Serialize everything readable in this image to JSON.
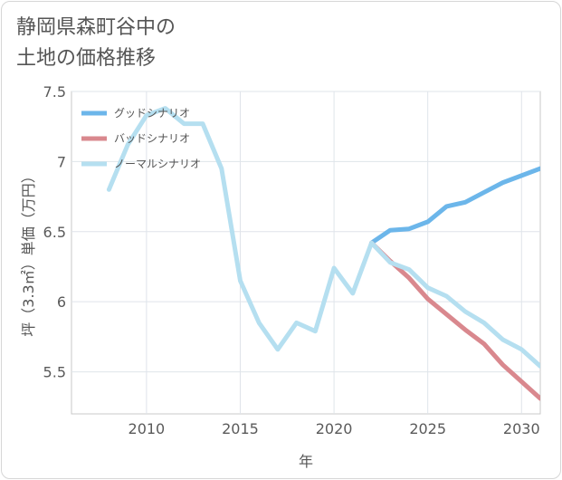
{
  "chart_data": {
    "type": "line",
    "title": [
      "静岡県森町谷中の",
      "土地の価格推移"
    ],
    "xlabel": "年",
    "ylabel": "坪（3.3㎡）単価（万円）",
    "xlim": [
      2006,
      2031
    ],
    "ylim": [
      5.2,
      7.5
    ],
    "xticks": [
      2010,
      2015,
      2020,
      2025,
      2030
    ],
    "yticks": [
      5.5,
      6,
      6.5,
      7,
      7.5
    ],
    "ytick_labels": [
      "5.5",
      "6",
      "6.5",
      "7",
      "7.5"
    ],
    "legend_position": "top-left",
    "grid": true,
    "series": [
      {
        "name": "グッドシナリオ",
        "color": "#6cb6ea",
        "x": [
          2022,
          2023,
          2024,
          2025,
          2026,
          2027,
          2028,
          2029,
          2030,
          2031
        ],
        "y": [
          6.42,
          6.51,
          6.52,
          6.57,
          6.68,
          6.71,
          6.78,
          6.85,
          6.9,
          6.95
        ]
      },
      {
        "name": "バッドシナリオ",
        "color": "#d9888e",
        "x": [
          2022,
          2023,
          2024,
          2025,
          2026,
          2027,
          2028,
          2029,
          2030,
          2031
        ],
        "y": [
          6.42,
          6.29,
          6.17,
          6.02,
          5.91,
          5.8,
          5.7,
          5.55,
          5.43,
          5.31
        ]
      },
      {
        "name": "ノーマルシナリオ",
        "color": "#b5dff0",
        "x": [
          2008,
          2009,
          2010,
          2011,
          2012,
          2013,
          2014,
          2015,
          2016,
          2017,
          2018,
          2019,
          2020,
          2021,
          2022,
          2023,
          2024,
          2025,
          2026,
          2027,
          2028,
          2029,
          2030,
          2031
        ],
        "y": [
          6.8,
          7.12,
          7.33,
          7.38,
          7.27,
          7.27,
          6.95,
          6.15,
          5.85,
          5.66,
          5.85,
          5.79,
          6.24,
          6.06,
          6.42,
          6.28,
          6.23,
          6.1,
          6.04,
          5.93,
          5.85,
          5.73,
          5.66,
          5.54
        ]
      }
    ]
  }
}
